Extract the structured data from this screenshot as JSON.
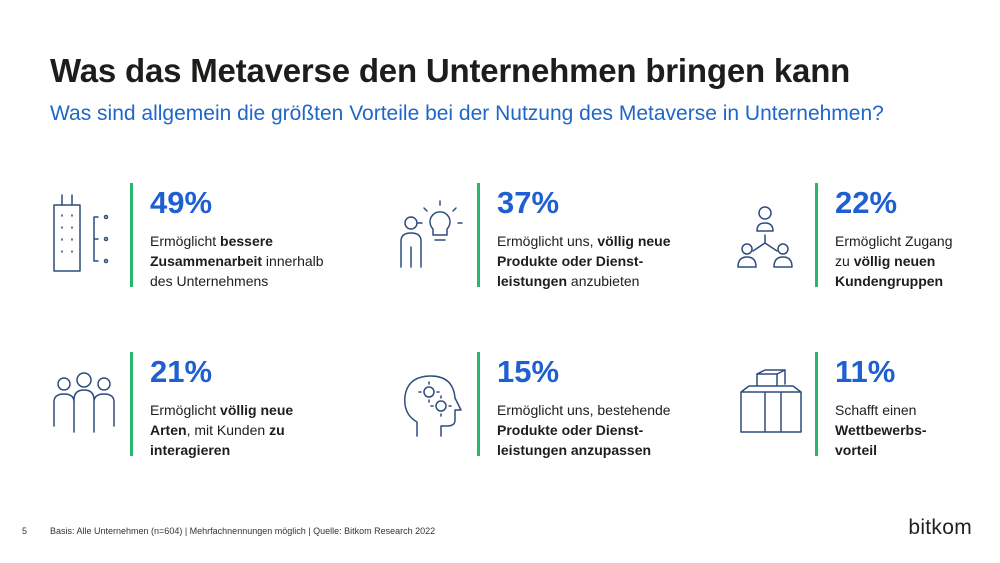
{
  "header": {
    "title": "Was das Metaverse den Unternehmen bringen kann",
    "subtitle": "Was sind allgemein die größten Vorteile bei der Nutzung des Metaverse in Unternehmen?"
  },
  "items": [
    {
      "value": "49%",
      "lines": [
        [
          {
            "text": "Ermöglicht ",
            "bold": false
          },
          {
            "text": "bessere",
            "bold": true
          }
        ],
        [
          {
            "text": "Zusammenarbeit",
            "bold": true
          },
          {
            "text": " innerhalb",
            "bold": false
          }
        ],
        [
          {
            "text": "des Unternehmens",
            "bold": false
          }
        ]
      ]
    },
    {
      "value": "37%",
      "lines": [
        [
          {
            "text": "Ermöglicht uns, ",
            "bold": false
          },
          {
            "text": "völlig neue",
            "bold": true
          }
        ],
        [
          {
            "text": "Produkte oder Dienst-",
            "bold": true
          }
        ],
        [
          {
            "text": "leistungen",
            "bold": true
          },
          {
            "text": " anzubieten",
            "bold": false
          }
        ]
      ]
    },
    {
      "value": "22%",
      "lines": [
        [
          {
            "text": "Ermöglicht Zugang",
            "bold": false
          }
        ],
        [
          {
            "text": "zu ",
            "bold": false
          },
          {
            "text": "völlig neuen",
            "bold": true
          }
        ],
        [
          {
            "text": "Kundengruppen",
            "bold": true
          }
        ]
      ]
    },
    {
      "value": "21%",
      "lines": [
        [
          {
            "text": "Ermöglicht ",
            "bold": false
          },
          {
            "text": "völlig neue",
            "bold": true
          }
        ],
        [
          {
            "text": "Arten",
            "bold": true
          },
          {
            "text": ", mit Kunden ",
            "bold": false
          },
          {
            "text": "zu",
            "bold": true
          }
        ],
        [
          {
            "text": "interagieren",
            "bold": true
          }
        ]
      ]
    },
    {
      "value": "15%",
      "lines": [
        [
          {
            "text": "Ermöglicht uns, bestehende",
            "bold": false
          }
        ],
        [
          {
            "text": "Produkte oder Dienst-",
            "bold": true
          }
        ],
        [
          {
            "text": "leistungen anzupassen",
            "bold": true
          }
        ]
      ]
    },
    {
      "value": "11%",
      "lines": [
        [
          {
            "text": "Schafft einen",
            "bold": false
          }
        ],
        [
          {
            "text": "Wettbewerbs-",
            "bold": true
          }
        ],
        [
          {
            "text": "vorteil",
            "bold": true
          }
        ]
      ]
    }
  ],
  "footer": {
    "page": "5",
    "source": "Basis: Alle Unternehmen (n=604) | Mehrfachnennungen möglich | Quelle: Bitkom Research 2022",
    "logo": "bitkom"
  }
}
